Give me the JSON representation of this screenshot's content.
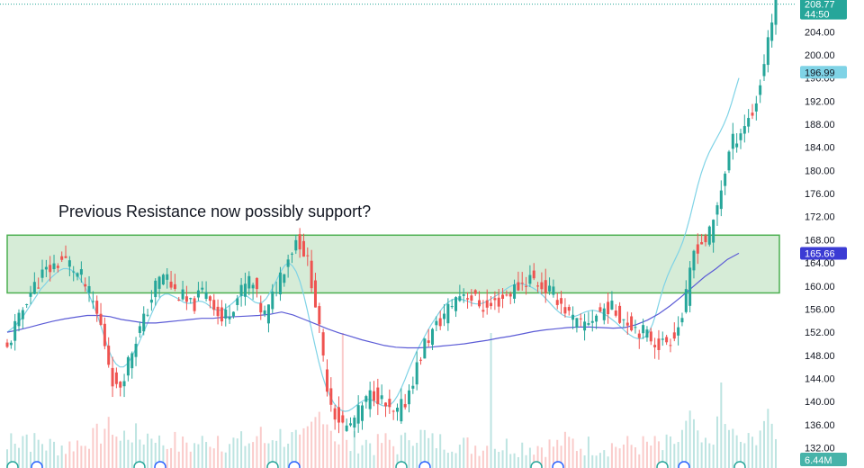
{
  "chart_data": {
    "type": "candlestick",
    "title": "",
    "xlabel": "",
    "ylabel": "",
    "ylim": [
      128.5,
      209.5
    ],
    "y_ticks": [
      132,
      136,
      140,
      144,
      148,
      152,
      156,
      160,
      164,
      168,
      172,
      176,
      180,
      184,
      188,
      192,
      196,
      200,
      204
    ],
    "y_tick_labels": [
      "132.00",
      "136.00",
      "140.00",
      "144.00",
      "148.00",
      "152.00",
      "156.00",
      "160.00",
      "164.00",
      "168.00",
      "172.00",
      "176.00",
      "180.00",
      "184.00",
      "188.00",
      "192.00",
      "196.00",
      "200.00",
      "204.00"
    ],
    "grid": false,
    "legend": "none",
    "colors": {
      "up": "#26a69a",
      "down": "#ef5350",
      "zone_fill": "#c8e6c9",
      "zone_border": "#4caf50",
      "ma_fast": "#7fd3e6",
      "ma_slow": "#5b5bd6",
      "price_badge": "#26a69a",
      "ma_fast_badge": "#7fd3e6",
      "ma_slow_badge": "#3b3bd4"
    },
    "annotation": {
      "text": "Previous Resistance now possibly support?",
      "zone_low": 158.8,
      "zone_high": 168.8
    },
    "close_series": [
      149,
      151,
      153,
      154,
      156,
      158,
      159,
      160,
      161,
      162,
      162.5,
      163,
      163.5,
      164,
      164.5,
      164.3,
      163.8,
      163,
      162,
      161.5,
      160,
      158.5,
      157,
      155,
      153,
      150,
      147,
      144,
      142,
      143,
      145,
      147,
      149,
      151,
      152.5,
      154,
      156,
      158,
      160,
      161,
      162,
      161.5,
      160,
      159,
      158.5,
      158,
      157,
      156.5,
      157,
      158,
      159,
      159.5,
      158,
      157,
      155,
      154,
      155,
      156,
      157,
      158,
      159,
      160,
      161,
      160,
      158,
      156,
      155,
      156,
      158,
      160,
      162,
      163.5,
      165,
      166.5,
      168,
      167.5,
      166,
      164,
      161,
      157,
      152,
      147,
      143,
      140,
      138,
      137,
      136,
      135.5,
      136,
      137,
      138,
      139,
      140,
      141,
      141.5,
      141,
      140,
      139,
      138,
      137.5,
      138,
      139,
      140,
      142,
      144,
      146,
      148,
      150,
      151,
      152,
      153,
      154,
      155,
      156,
      157,
      158,
      158.5,
      159,
      158.5,
      158,
      157.5,
      157,
      156.5,
      156,
      156.5,
      157,
      157.5,
      158,
      158.5,
      159,
      159.5,
      160,
      160.5,
      161,
      161.5,
      161,
      160.5,
      160,
      159.5,
      159,
      158.5,
      158,
      157,
      156,
      155,
      154,
      153.5,
      153,
      153.5,
      154,
      154.5,
      155,
      155.5,
      156,
      156.5,
      156,
      155.5,
      155,
      154.5,
      154,
      153.5,
      153,
      152.5,
      152,
      151.5,
      151,
      150.5,
      150,
      150,
      150.5,
      151,
      152,
      153,
      155,
      158,
      162,
      166,
      167,
      167.5,
      168,
      169,
      171,
      174,
      177,
      180,
      183,
      185,
      186,
      187,
      188,
      189,
      190,
      192,
      195,
      199,
      203,
      206,
      208.5
    ],
    "ma_fast_series": [
      152,
      152.5,
      153,
      153.8,
      154.5,
      155.5,
      156.5,
      157.5,
      158.5,
      159.5,
      160.2,
      161,
      161.6,
      162.2,
      162.7,
      163,
      163,
      162.8,
      162.3,
      161.6,
      160.7,
      159.5,
      158.2,
      156.6,
      155,
      153,
      151,
      149,
      147.5,
      146.5,
      146,
      146,
      146.5,
      147.5,
      148.8,
      150,
      151.5,
      153,
      154.5,
      156,
      157.3,
      158.2,
      158.6,
      158.6,
      158.3,
      158,
      157.6,
      157.2,
      157,
      157,
      157.2,
      157.4,
      157.3,
      157,
      156.5,
      156,
      155.8,
      155.8,
      156,
      156.5,
      157,
      157.6,
      158.2,
      158.4,
      158.2,
      157.7,
      157.2,
      157,
      157.2,
      157.8,
      158.8,
      160,
      161.3,
      162.6,
      163.6,
      164,
      163.5,
      162.5,
      160.8,
      158.5,
      155.8,
      152.8,
      149.8,
      147,
      144.5,
      142.5,
      141,
      139.8,
      139,
      138.5,
      138.3,
      138.4,
      138.8,
      139.3,
      139.8,
      140.2,
      140.4,
      140.3,
      140,
      139.6,
      139.3,
      139.2,
      139.4,
      140,
      141,
      142.3,
      143.8,
      145.5,
      147,
      148.5,
      149.8,
      151,
      152.2,
      153.3,
      154.3,
      155.3,
      156.2,
      156.9,
      157.4,
      157.7,
      157.8,
      157.7,
      157.5,
      157.3,
      157,
      156.9,
      156.9,
      157.1,
      157.4,
      157.8,
      158.2,
      158.6,
      159,
      159.5,
      159.9,
      160.2,
      160.4,
      160.4,
      160.2,
      160,
      159.7,
      159.3,
      158.8,
      158.2,
      157.5,
      156.8,
      156.1,
      155.5,
      155,
      154.7,
      154.6,
      154.7,
      154.9,
      155.2,
      155.5,
      155.7,
      155.8,
      155.7,
      155.5,
      155.2,
      154.8,
      154.3,
      153.8,
      153.2,
      152.6,
      152,
      151.5,
      151.1,
      150.9,
      150.9,
      151.2,
      152,
      153.4,
      155.4,
      157.8,
      160,
      161.8,
      163.3,
      164.6,
      166,
      167.6,
      169.6,
      172,
      174.7,
      177.3,
      179.6,
      181.5,
      183,
      184.3,
      185.5,
      186.7,
      188,
      189.6,
      191.6,
      193.8,
      196
    ],
    "ma_slow_series": [
      152.0,
      152.4,
      152.9,
      153.4,
      153.9,
      154.3,
      154.6,
      154.9,
      154.9,
      154.7,
      154.2,
      153.9,
      153.6,
      153.6,
      153.8,
      154.0,
      154.2,
      154.4,
      154.4,
      154.6,
      154.7,
      154.8,
      154.9,
      155.1,
      155.5,
      155.0,
      154.2,
      153.4,
      152.6,
      151.9,
      151.3,
      150.7,
      150.2,
      149.7,
      149.4,
      149.3,
      149.3,
      149.4,
      149.6,
      149.8,
      150.0,
      150.3,
      150.6,
      151.0,
      151.3,
      151.7,
      152.1,
      152.4,
      152.6,
      152.8,
      152.9,
      152.9,
      152.8,
      152.7,
      152.8,
      153.3,
      154.1,
      155.2,
      156.6,
      158.2,
      159.9,
      161.6,
      163.0,
      164.6,
      165.66
    ]
  },
  "labels": {
    "top_partial_label": "",
    "last_price": "208.77",
    "countdown": "44:50",
    "ma_fast_value": "196.99",
    "ma_slow_value": "165.66",
    "volume_value": "6.44M"
  }
}
